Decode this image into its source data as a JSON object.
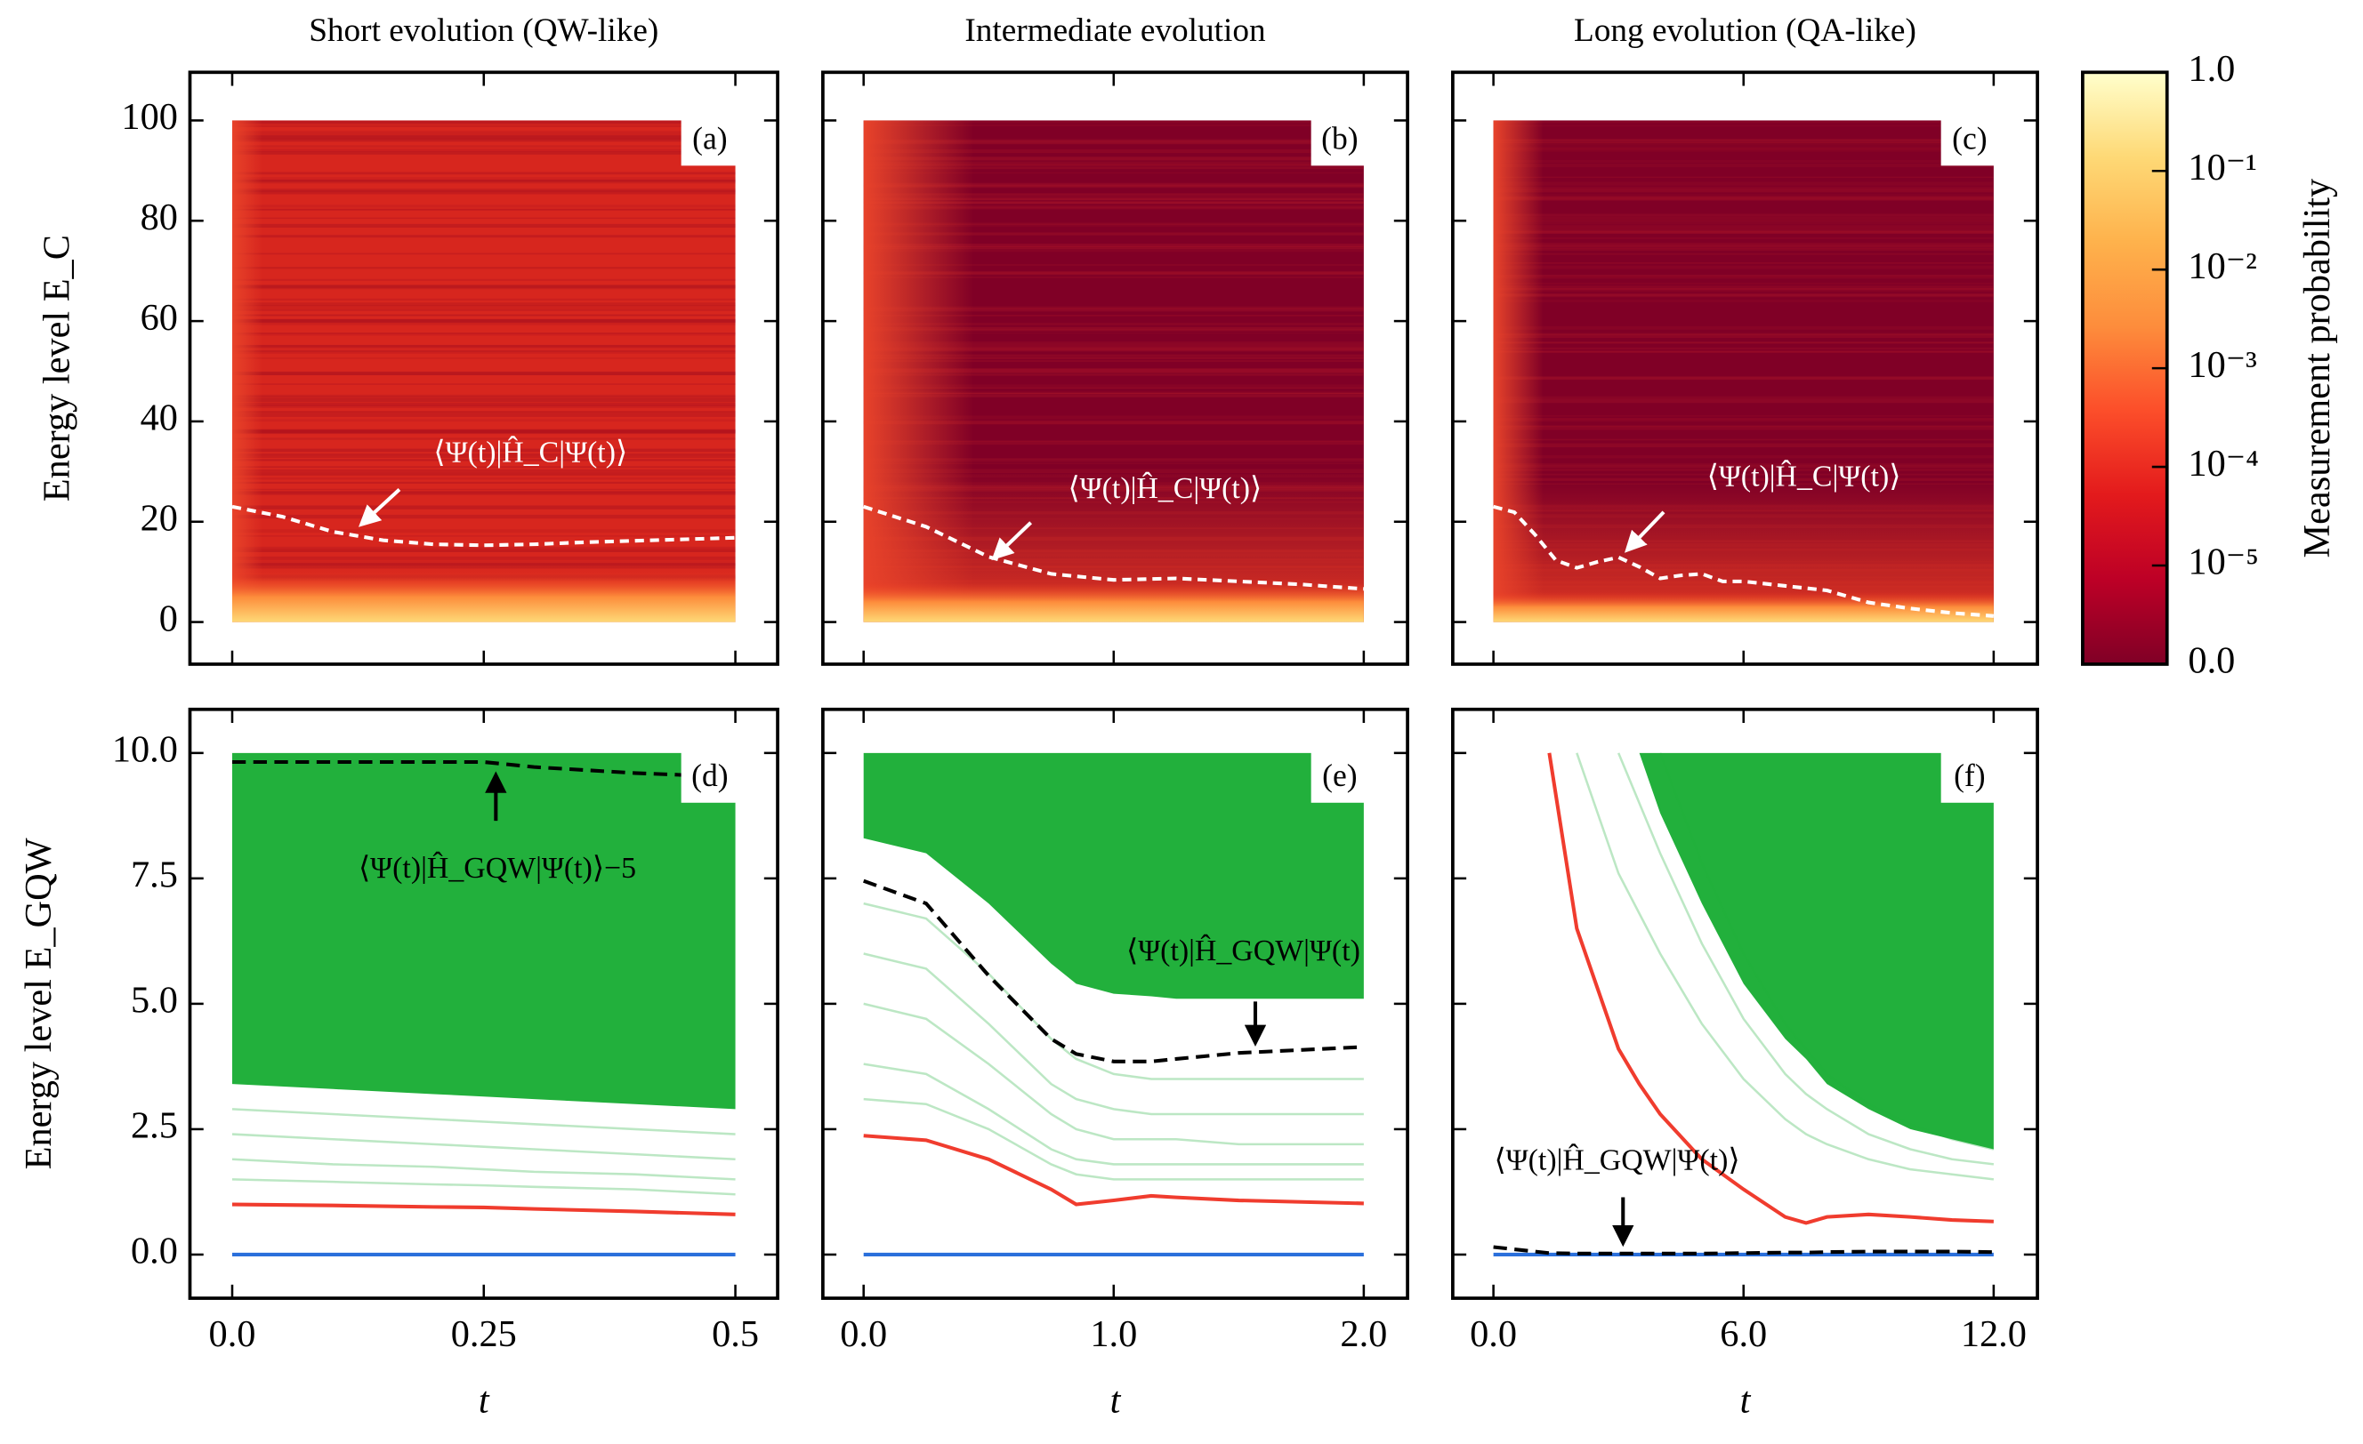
{
  "chart_data": [
    {
      "type": "heatmap",
      "title": "Short evolution (QW-like)",
      "label": "(a)",
      "ylabel": "Energy level E_C",
      "annotation": "⟨Ψ(t)|Ĥ_C|Ψ(t)⟩",
      "x": [
        0,
        0.05,
        0.1,
        0.15,
        0.2,
        0.25,
        0.3,
        0.35,
        0.4,
        0.45,
        0.5
      ],
      "series": [
        {
          "color": "#ffffff",
          "dash": true,
          "values": [
            23,
            21,
            18,
            16.3,
            15.5,
            15.3,
            15.5,
            15.9,
            16.2,
            16.5,
            16.8
          ]
        }
      ],
      "xlim": [
        -0.042,
        0.542
      ],
      "ylim": [
        -8.4,
        109.6
      ],
      "xticks": [
        0,
        0.25,
        0.5
      ],
      "yticks": [
        0,
        20,
        40,
        60,
        80,
        100
      ],
      "xtick_labels": false,
      "ytick_labels": true
    },
    {
      "type": "heatmap",
      "title": "Intermediate evolution",
      "label": "(b)",
      "annotation": "⟨Ψ(t)|Ĥ_C|Ψ(t)⟩",
      "x": [
        0,
        0.25,
        0.5,
        0.75,
        1.0,
        1.25,
        1.5,
        1.75,
        2.0
      ],
      "series": [
        {
          "color": "#ffffff",
          "dash": true,
          "values": [
            23,
            19,
            13,
            9.6,
            8.4,
            8.7,
            8.1,
            7.5,
            6.6
          ]
        }
      ],
      "xlim": [
        -0.163,
        2.175
      ],
      "ylim": [
        -8.4,
        109.6
      ],
      "xticks": [
        0,
        1,
        2
      ],
      "yticks": [
        0,
        20,
        40,
        60,
        80,
        100
      ],
      "xtick_labels": false,
      "ytick_labels": false
    },
    {
      "type": "heatmap",
      "title": "Long evolution (QA-like)",
      "label": "(c)",
      "annotation": "⟨Ψ(t)|Ĥ_C|Ψ(t)⟩",
      "x": [
        0,
        0.5,
        1,
        1.5,
        2,
        2.5,
        3,
        3.5,
        4,
        4.5,
        5,
        5.5,
        6,
        7,
        8,
        9,
        10,
        11,
        12
      ],
      "series": [
        {
          "color": "#ffffff",
          "dash": true,
          "values": [
            23,
            21.9,
            17.4,
            12.3,
            10.8,
            12,
            12.9,
            11,
            8.7,
            9.3,
            9.6,
            8.1,
            8.1,
            7.2,
            6.3,
            3.9,
            2.7,
            1.8,
            1.2
          ]
        }
      ],
      "xlim": [
        -0.976,
        13.05
      ],
      "ylim": [
        -8.4,
        109.6
      ],
      "xticks": [
        0,
        6,
        12
      ],
      "yticks": [
        0,
        20,
        40,
        60,
        80,
        100
      ],
      "xtick_labels": false,
      "ytick_labels": false
    },
    {
      "type": "line",
      "label": "(d)",
      "xlabel": "t",
      "ylabel": "Energy level E_GQW",
      "annotation": "⟨Ψ(t)|Ĥ_GQW|Ψ(t)⟩−5",
      "x": [
        0,
        0.1,
        0.2,
        0.25,
        0.3,
        0.4,
        0.5
      ],
      "series": [
        {
          "kind": "band",
          "color": "#22b03c",
          "values": [
            3.4,
            3.3,
            3.2,
            3.15,
            3.1,
            3.0,
            2.9
          ],
          "upper": [
            10,
            10,
            10,
            10,
            10,
            10,
            10
          ]
        },
        {
          "color": "#22b03c",
          "alpha": 0.3,
          "values": [
            2.9,
            2.8,
            2.7,
            2.65,
            2.6,
            2.5,
            2.4
          ]
        },
        {
          "color": "#22b03c",
          "alpha": 0.3,
          "values": [
            2.4,
            2.3,
            2.2,
            2.15,
            2.1,
            2.0,
            1.9
          ]
        },
        {
          "color": "#22b03c",
          "alpha": 0.3,
          "values": [
            1.9,
            1.8,
            1.75,
            1.7,
            1.65,
            1.6,
            1.5
          ]
        },
        {
          "color": "#22b03c",
          "alpha": 0.3,
          "values": [
            1.5,
            1.45,
            1.4,
            1.38,
            1.35,
            1.3,
            1.2
          ]
        },
        {
          "color": "#f03c2e",
          "values": [
            1.0,
            0.98,
            0.95,
            0.94,
            0.91,
            0.86,
            0.8
          ]
        },
        {
          "color": "#2a6fdb",
          "values": [
            0,
            0,
            0,
            0,
            0,
            0,
            0
          ]
        },
        {
          "color": "#000000",
          "dash": true,
          "values": [
            9.82,
            9.82,
            9.82,
            9.82,
            9.72,
            9.6,
            9.52
          ]
        }
      ],
      "xlim": [
        -0.042,
        0.542
      ],
      "ylim": [
        -0.87,
        10.87
      ],
      "xticks": [
        {
          "value": 0,
          "label": "0.0"
        },
        0.25,
        {
          "value": 0.5,
          "label": "0.5"
        }
      ],
      "yticks": [
        {
          "value": 0,
          "label": "0.0"
        },
        {
          "value": 2.5,
          "label": "2.5"
        },
        {
          "value": 5,
          "label": "5.0"
        },
        {
          "value": 7.5,
          "label": "7.5"
        },
        {
          "value": 10,
          "label": "10.0"
        }
      ],
      "xtick_labels": true,
      "ytick_labels": true
    },
    {
      "type": "line",
      "label": "(e)",
      "xlabel": "t",
      "annotation": "⟨Ψ(t)|Ĥ_GQW|Ψ(t)",
      "x": [
        0,
        0.25,
        0.5,
        0.75,
        0.85,
        1.0,
        1.15,
        1.25,
        1.5,
        1.75,
        2.0
      ],
      "series": [
        {
          "kind": "band",
          "color": "#22b03c",
          "values": [
            8.3,
            8.0,
            7.0,
            5.8,
            5.4,
            5.2,
            5.15,
            5.1,
            5.1,
            5.1,
            5.1
          ],
          "upper": [
            10,
            10,
            10,
            10,
            10,
            10,
            10,
            10,
            10,
            10,
            10
          ]
        },
        {
          "color": "#22b03c",
          "alpha": 0.3,
          "values": [
            7.0,
            6.7,
            5.6,
            4.3,
            3.9,
            3.6,
            3.5,
            3.5,
            3.5,
            3.5,
            3.5
          ]
        },
        {
          "color": "#22b03c",
          "alpha": 0.3,
          "values": [
            6.0,
            5.7,
            4.6,
            3.4,
            3.1,
            2.9,
            2.8,
            2.8,
            2.8,
            2.8,
            2.8
          ]
        },
        {
          "color": "#22b03c",
          "alpha": 0.3,
          "values": [
            5.0,
            4.7,
            3.8,
            2.8,
            2.5,
            2.3,
            2.3,
            2.3,
            2.2,
            2.2,
            2.2
          ]
        },
        {
          "color": "#22b03c",
          "alpha": 0.3,
          "values": [
            3.8,
            3.6,
            2.9,
            2.1,
            1.9,
            1.8,
            1.8,
            1.8,
            1.8,
            1.8,
            1.8
          ]
        },
        {
          "color": "#22b03c",
          "alpha": 0.3,
          "values": [
            3.1,
            3.0,
            2.5,
            1.8,
            1.6,
            1.5,
            1.5,
            1.5,
            1.5,
            1.5,
            1.5
          ]
        },
        {
          "color": "#f03c2e",
          "values": [
            2.37,
            2.28,
            1.9,
            1.3,
            1.0,
            1.08,
            1.17,
            1.14,
            1.08,
            1.05,
            1.02
          ]
        },
        {
          "color": "#2a6fdb",
          "values": [
            0,
            0,
            0,
            0,
            0,
            0,
            0,
            0,
            0,
            0,
            0
          ]
        },
        {
          "color": "#000000",
          "dash": true,
          "values": [
            7.45,
            7.0,
            5.56,
            4.3,
            4.0,
            3.85,
            3.85,
            3.9,
            4.02,
            4.08,
            4.14
          ]
        }
      ],
      "xlim": [
        -0.163,
        2.175
      ],
      "ylim": [
        -0.87,
        10.87
      ],
      "xticks": [
        {
          "value": 0,
          "label": "0.0"
        },
        {
          "value": 1,
          "label": "1.0"
        },
        {
          "value": 2,
          "label": "2.0"
        }
      ],
      "yticks": [
        0,
        2.5,
        5,
        7.5,
        10
      ],
      "xtick_labels": true,
      "ytick_labels": false
    },
    {
      "type": "line",
      "label": "(f)",
      "xlabel": "t",
      "annotation": "⟨Ψ(t)|Ĥ_GQW|Ψ(t)⟩",
      "x": [
        0,
        1.34,
        2,
        3,
        3.5,
        4,
        5,
        6,
        7,
        7.5,
        8,
        9,
        10,
        11,
        12
      ],
      "series": [
        {
          "kind": "band",
          "color": "#22b03c",
          "values": [
            null,
            null,
            null,
            null,
            10,
            8.8,
            7.0,
            5.4,
            4.3,
            3.9,
            3.4,
            2.9,
            2.5,
            2.3,
            2.1
          ],
          "upper": [
            null,
            null,
            null,
            null,
            10,
            10,
            10,
            10,
            10,
            10,
            10,
            10,
            10,
            10,
            10
          ]
        },
        {
          "color": "#22b03c",
          "alpha": 0.3,
          "values": [
            null,
            null,
            10,
            7.6,
            6.8,
            6.0,
            4.6,
            3.5,
            2.7,
            2.4,
            2.2,
            1.9,
            1.7,
            1.6,
            1.5
          ]
        },
        {
          "color": "#22b03c",
          "alpha": 0.3,
          "values": [
            null,
            null,
            null,
            10,
            9.0,
            8.0,
            6.2,
            4.7,
            3.6,
            3.2,
            2.9,
            2.4,
            2.1,
            1.9,
            1.8
          ]
        },
        {
          "color": "#22b03c",
          "alpha": 0.3,
          "values": [
            null,
            null,
            null,
            null,
            null,
            10,
            7.8,
            6.0,
            4.6,
            4.1,
            3.6,
            3.0,
            2.6,
            2.3,
            2.1
          ]
        },
        {
          "color": "#f03c2e",
          "values": [
            null,
            10,
            6.5,
            4.1,
            3.4,
            2.8,
            1.9,
            1.3,
            0.75,
            0.63,
            0.75,
            0.8,
            0.75,
            0.69,
            0.66
          ]
        },
        {
          "color": "#2a6fdb",
          "values": [
            0,
            0,
            0,
            0,
            0,
            0,
            0,
            0,
            0,
            0,
            0,
            0,
            0,
            0,
            0
          ]
        },
        {
          "color": "#000000",
          "dash": true,
          "values": [
            0.15,
            0.03,
            0.02,
            0.02,
            0.02,
            0.02,
            0.02,
            0.03,
            0.04,
            0.04,
            0.05,
            0.06,
            0.06,
            0.06,
            0.05
          ]
        }
      ],
      "xlim": [
        -0.976,
        13.05
      ],
      "ylim": [
        -0.87,
        10.87
      ],
      "xticks": [
        {
          "value": 0,
          "label": "0.0"
        },
        {
          "value": 6,
          "label": "6.0"
        },
        {
          "value": 12,
          "label": "12.0"
        }
      ],
      "yticks": [
        0,
        2.5,
        5,
        7.5,
        10
      ],
      "xtick_labels": true,
      "ytick_labels": false
    },
    {
      "type": "colorbar",
      "label": "Measurement probability",
      "scale": "symlog",
      "linthresh": 1e-05,
      "lim": [
        0,
        1
      ],
      "colors": [
        "#800026",
        "#bd0026",
        "#e31a1c",
        "#fc4e2a",
        "#fd8d3c",
        "#feb24c",
        "#fed976",
        "#ffffcc"
      ],
      "ticks": [
        {
          "value": 0,
          "label": "0.0"
        },
        {
          "value": 1e-05,
          "label": "10⁻⁵"
        },
        {
          "value": 0.0001,
          "label": "10⁻⁴"
        },
        {
          "value": 0.001,
          "label": "10⁻³"
        },
        {
          "value": 0.01,
          "label": "10⁻²"
        },
        {
          "value": 0.1,
          "label": "10⁻¹"
        },
        {
          "value": 1,
          "label": "1.0"
        }
      ]
    }
  ]
}
